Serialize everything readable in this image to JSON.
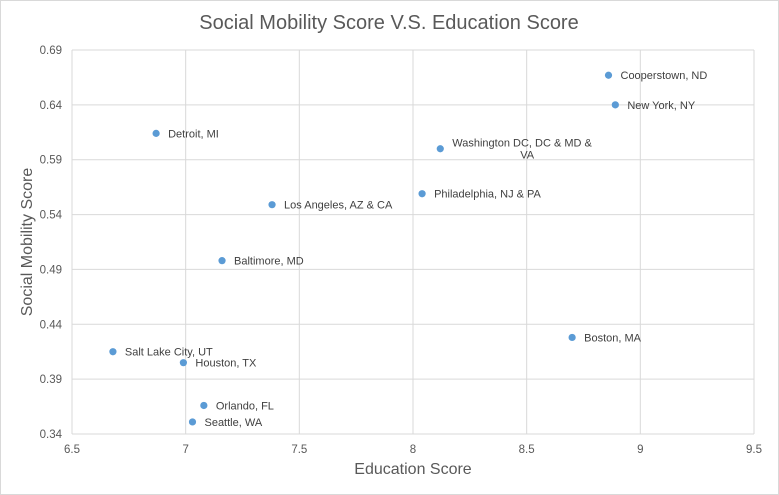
{
  "chart_data": {
    "type": "scatter",
    "title": "Social Mobility Score V.S. Education Score",
    "xlabel": "Education Score",
    "ylabel": "Social Mobility Score",
    "xlim": [
      6.5,
      9.5
    ],
    "ylim": [
      0.34,
      0.69
    ],
    "xticks": [
      "6.5",
      "7",
      "7.5",
      "8",
      "8.5",
      "9",
      "9.5"
    ],
    "yticks": [
      "0.34",
      "0.39",
      "0.44",
      "0.49",
      "0.54",
      "0.59",
      "0.64",
      "0.69"
    ],
    "grid": true,
    "marker_color": "#5b9bd5",
    "points": [
      {
        "label": "Cooperstown, ND",
        "x": 8.86,
        "y": 0.667
      },
      {
        "label": "New York, NY",
        "x": 8.89,
        "y": 0.64
      },
      {
        "label": "Detroit, MI",
        "x": 6.87,
        "y": 0.614
      },
      {
        "label": "Washington DC, DC & MD & VA",
        "x": 8.12,
        "y": 0.6
      },
      {
        "label": "Philadelphia, NJ & PA",
        "x": 8.04,
        "y": 0.559
      },
      {
        "label": "Los Angeles, AZ & CA",
        "x": 7.38,
        "y": 0.549
      },
      {
        "label": "Baltimore, MD",
        "x": 7.16,
        "y": 0.498
      },
      {
        "label": "Boston, MA",
        "x": 8.7,
        "y": 0.428
      },
      {
        "label": "Salt Lake City, UT",
        "x": 6.68,
        "y": 0.415
      },
      {
        "label": "Houston, TX",
        "x": 6.99,
        "y": 0.405
      },
      {
        "label": "Orlando, FL",
        "x": 7.08,
        "y": 0.366
      },
      {
        "label": "Seattle, WA",
        "x": 7.03,
        "y": 0.351
      }
    ]
  }
}
